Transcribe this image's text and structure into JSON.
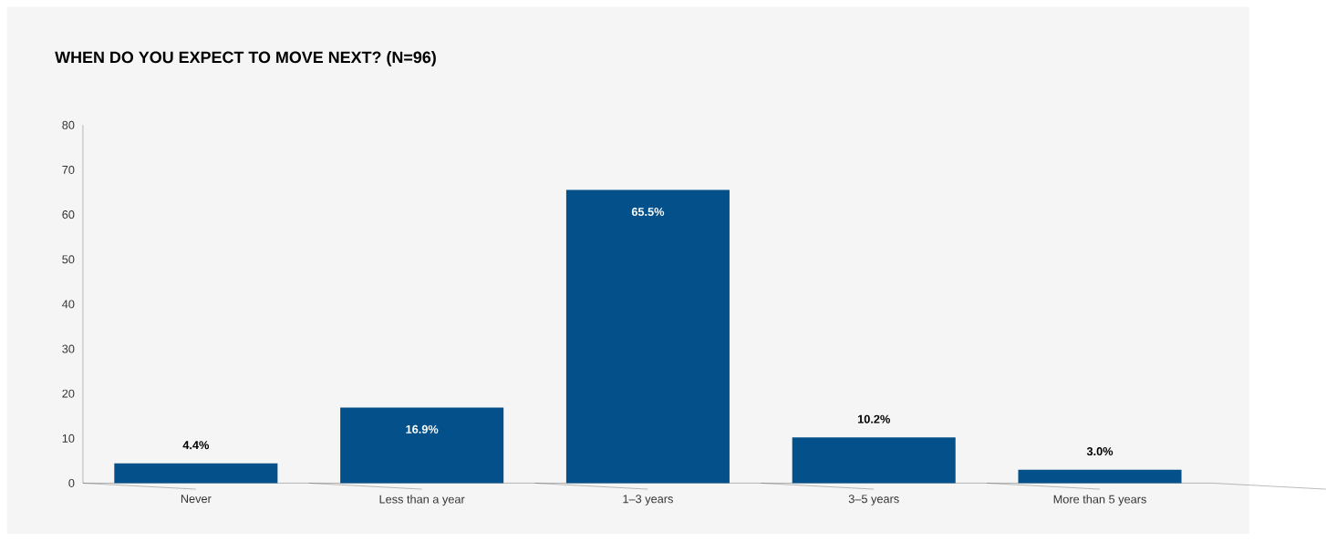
{
  "chart_data": {
    "type": "bar",
    "title": "WHEN DO YOU EXPECT TO MOVE NEXT? (N=96)",
    "categories": [
      "Never",
      "Less than a year",
      "1–3 years",
      "3–5 years",
      "More than 5 years"
    ],
    "values": [
      4.4,
      16.9,
      65.5,
      10.2,
      3.0
    ],
    "value_labels": [
      "4.4%",
      "16.9%",
      "65.5%",
      "10.2%",
      "3.0%"
    ],
    "color": "#03508a",
    "ylim": [
      0,
      80
    ],
    "yticks": [
      0,
      10,
      20,
      30,
      40,
      50,
      60,
      70,
      80
    ],
    "grid": false
  }
}
